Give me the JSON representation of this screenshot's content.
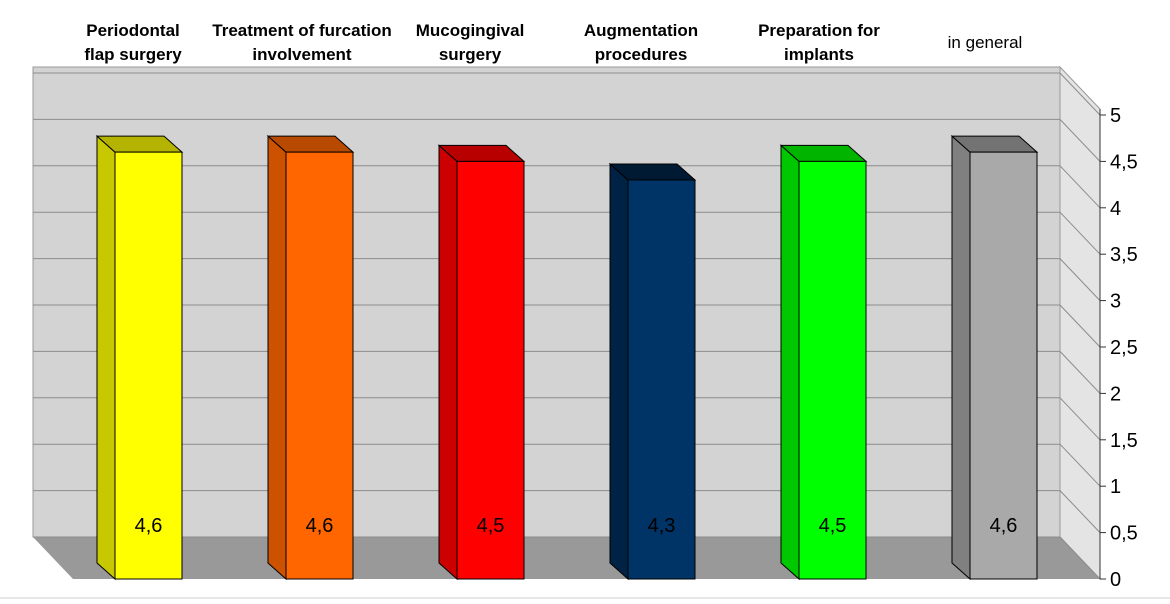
{
  "chart_data": {
    "type": "bar",
    "categories": [
      "Periodontal flap surgery",
      "Treatment of furcation involvement",
      "Mucogingival surgery",
      "Augmentation procedures",
      "Preparation for implants",
      "in general"
    ],
    "category_label_lines": [
      [
        "Periodontal",
        "flap surgery"
      ],
      [
        "Treatment of furcation",
        "involvement"
      ],
      [
        "Mucogingival",
        "surgery"
      ],
      [
        "Augmentation",
        "procedures"
      ],
      [
        "Preparation for",
        "implants"
      ],
      [
        "in general"
      ]
    ],
    "values": [
      4.6,
      4.6,
      4.5,
      4.3,
      4.5,
      4.6
    ],
    "data_labels": [
      "4,6",
      "4,6",
      "4,5",
      "4,3",
      "4,5",
      "4,6"
    ],
    "ylim": [
      0,
      5
    ],
    "y_ticks": [
      0,
      0.5,
      1,
      1.5,
      2,
      2.5,
      3,
      3.5,
      4,
      4.5,
      5
    ],
    "y_tick_labels": [
      "0",
      "0,5",
      "1",
      "1,5",
      "2",
      "2,5",
      "3",
      "3,5",
      "4",
      "4,5",
      "5"
    ],
    "y_axis_side": "right",
    "grid": true,
    "style": "3d-column",
    "colors": {
      "front": [
        "#FFFF00",
        "#FF6600",
        "#FF0000",
        "#003366",
        "#00FF00",
        "#A9A9A9"
      ],
      "side": [
        "#C8C800",
        "#CC5200",
        "#CC0000",
        "#002244",
        "#00C800",
        "#808080"
      ],
      "top": [
        "#B4B400",
        "#B84A00",
        "#B80000",
        "#001A33",
        "#00B400",
        "#737373"
      ],
      "wall": "#D3D3D3",
      "floor": "#999999",
      "grid": "#8C8C8C"
    }
  }
}
